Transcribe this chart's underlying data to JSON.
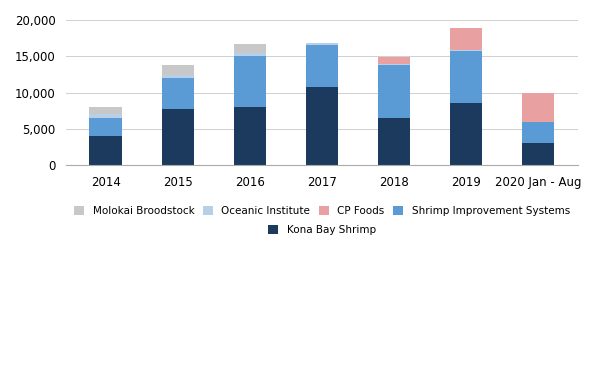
{
  "categories": [
    "2014",
    "2015",
    "2016",
    "2017",
    "2018",
    "2019",
    "2020 Jan - Aug"
  ],
  "kona_bay": [
    4000,
    7800,
    8000,
    10800,
    6500,
    8600,
    3000
  ],
  "shrimp_improvement": [
    2500,
    4200,
    7000,
    5800,
    7300,
    7100,
    2900
  ],
  "oceanic_institute": [
    500,
    400,
    400,
    200,
    100,
    200,
    100
  ],
  "cp_foods": [
    0,
    0,
    0,
    0,
    1000,
    3000,
    4000
  ],
  "molokai": [
    1000,
    1400,
    1300,
    0,
    0,
    0,
    0
  ],
  "colors": {
    "kona_bay": "#1b3a5e",
    "shrimp_improvement": "#5b9bd5",
    "oceanic_institute": "#b8cfe8",
    "cp_foods": "#e8a0a0",
    "molokai": "#c8c8c8"
  },
  "ylim": [
    0,
    20000
  ],
  "yticks": [
    0,
    5000,
    10000,
    15000,
    20000
  ],
  "background_color": "#ffffff",
  "grid_color": "#d0d0d0"
}
